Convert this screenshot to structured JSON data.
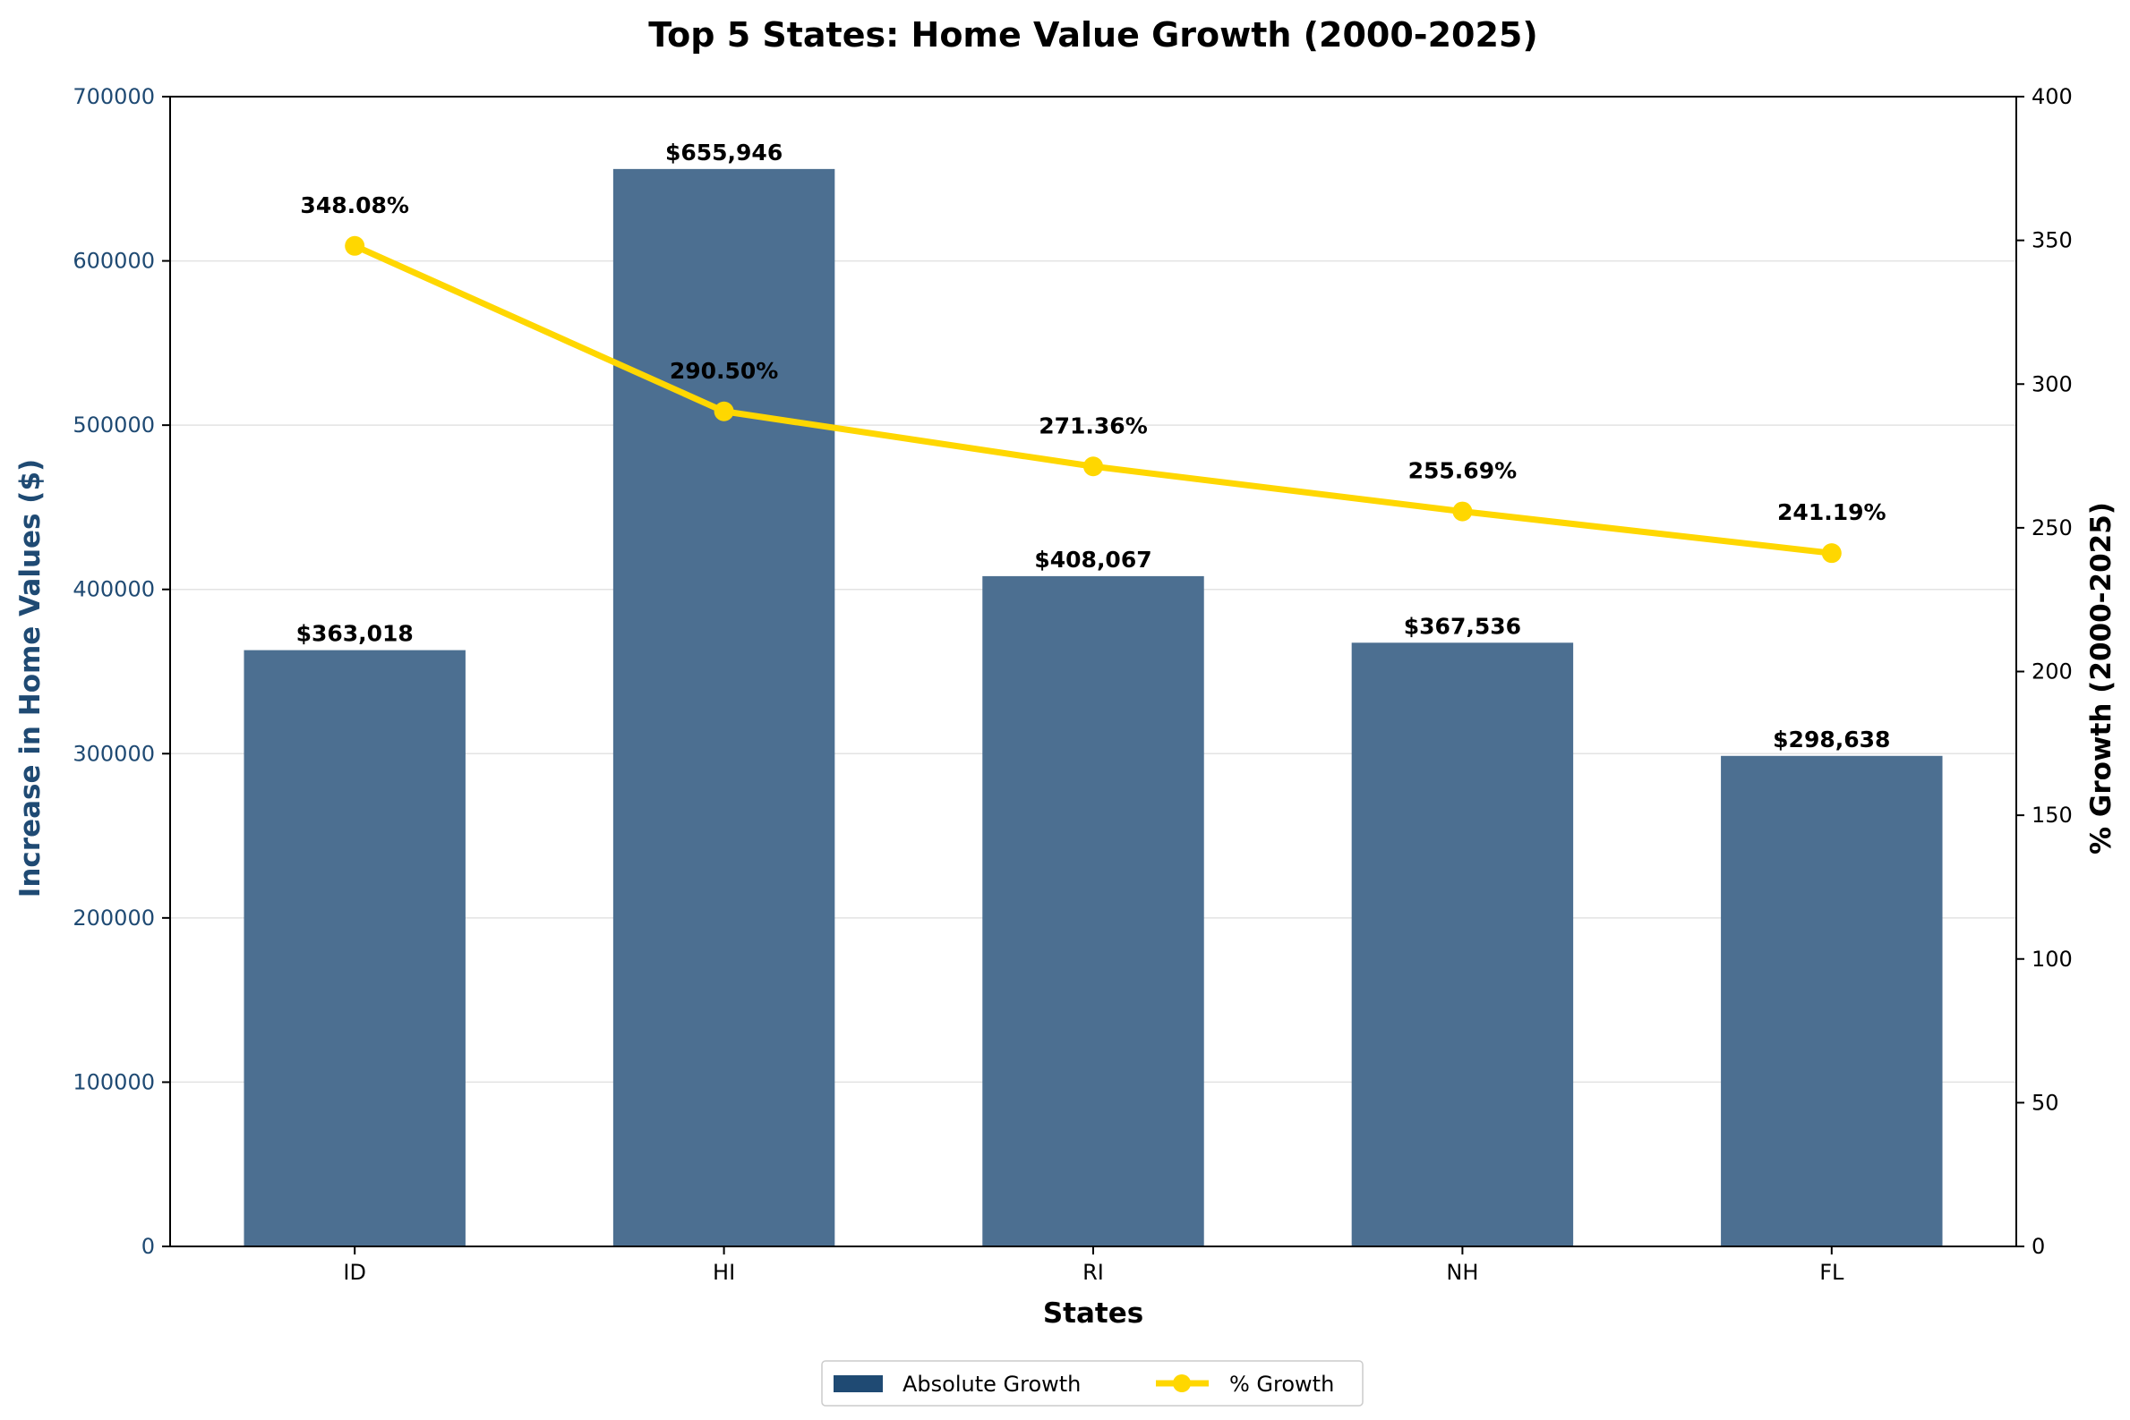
{
  "chart_data": {
    "type": "bar",
    "title": "Top 5 States: Home Value Growth (2000-2025)",
    "xlabel": "States",
    "ylabel": "Increase in Home Values ($)",
    "y2label": "% Growth (2000-2025)",
    "categories": [
      "ID",
      "HI",
      "RI",
      "NH",
      "FL"
    ],
    "ylim": [
      0,
      700000
    ],
    "y2lim": [
      0,
      400
    ],
    "yticks": [
      "0",
      "100000",
      "200000",
      "300000",
      "400000",
      "500000",
      "600000",
      "700000"
    ],
    "y2ticks": [
      "0",
      "50",
      "100",
      "150",
      "200",
      "250",
      "300",
      "350",
      "400"
    ],
    "grid": "horizontal",
    "legend_position": "bottom-center",
    "series": [
      {
        "name": "Absolute Growth",
        "type": "bar",
        "axis": "left",
        "color": "#4C6F91",
        "legend_color": "#1F4A73",
        "values": [
          363018,
          655946,
          408067,
          367536,
          298638
        ],
        "labels": [
          "$363,018",
          "$655,946",
          "$408,067",
          "$367,536",
          "$298,638"
        ]
      },
      {
        "name": "% Growth",
        "type": "line",
        "axis": "right",
        "color": "#FFD700",
        "values": [
          348.08,
          290.5,
          271.36,
          255.69,
          241.19
        ],
        "labels": [
          "348.08%",
          "290.50%",
          "271.36%",
          "255.69%",
          "241.19%"
        ]
      }
    ],
    "colors": {
      "left_axis": "#1F4A73",
      "right_axis": "#000000"
    }
  }
}
